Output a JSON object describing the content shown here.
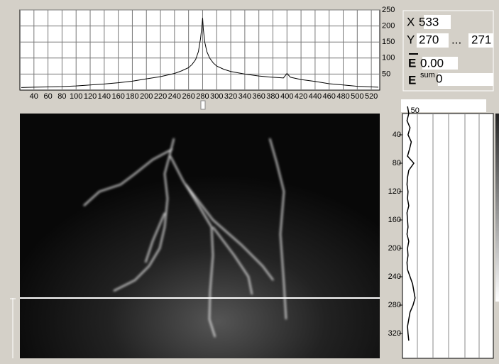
{
  "readout": {
    "x_label": "X",
    "x": "533",
    "y_label": "Y",
    "y_from": "270",
    "sep": "...",
    "y_to": "271",
    "e_mean_label": "E",
    "e_mean": "0.00",
    "e_sum_label": "E",
    "e_sum_sup": "sum",
    "e_sum": "0"
  },
  "chart_data": [
    {
      "type": "line",
      "color": "#000000",
      "grid": true,
      "x": [
        22,
        40,
        60,
        80,
        100,
        120,
        140,
        160,
        180,
        200,
        220,
        240,
        250,
        260,
        265,
        270,
        274,
        277,
        279,
        280,
        281,
        283,
        286,
        290,
        295,
        300,
        310,
        320,
        340,
        360,
        380,
        395,
        400,
        405,
        420,
        440,
        460,
        480,
        500,
        520,
        530
      ],
      "values": [
        8,
        9,
        10,
        11,
        13,
        16,
        19,
        23,
        28,
        35,
        42,
        52,
        60,
        70,
        80,
        95,
        120,
        160,
        200,
        225,
        190,
        150,
        120,
        100,
        85,
        75,
        65,
        58,
        50,
        44,
        40,
        38,
        52,
        40,
        33,
        27,
        20,
        16,
        12,
        10,
        9
      ],
      "xlim": [
        20,
        532
      ],
      "xticks": [
        40,
        60,
        80,
        100,
        120,
        140,
        160,
        180,
        200,
        220,
        240,
        260,
        280,
        300,
        320,
        340,
        360,
        380,
        400,
        420,
        440,
        460,
        480,
        500,
        520
      ],
      "ylim": [
        0,
        250
      ],
      "yticks": [
        50,
        100,
        150,
        200,
        250
      ]
    },
    {
      "type": "line",
      "orientation": "vertical",
      "color": "#000000",
      "y": [
        0,
        10,
        20,
        30,
        40,
        50,
        60,
        70,
        80,
        90,
        100,
        110,
        120,
        130,
        140,
        150,
        160,
        170,
        180,
        190,
        200,
        210,
        220,
        230,
        240,
        250,
        260,
        270,
        280,
        290,
        300,
        310,
        320,
        330
      ],
      "values": [
        20,
        25,
        18,
        30,
        22,
        35,
        28,
        20,
        45,
        25,
        20,
        18,
        22,
        20,
        25,
        18,
        20,
        22,
        18,
        25,
        20,
        22,
        18,
        20,
        30,
        40,
        45,
        50,
        42,
        30,
        25,
        20,
        22,
        25
      ],
      "ylim": [
        0,
        355
      ],
      "yticks": [
        40,
        80,
        120,
        160,
        200,
        240,
        280,
        320
      ],
      "xlim": [
        0,
        360
      ],
      "xticks": [
        50
      ]
    }
  ]
}
